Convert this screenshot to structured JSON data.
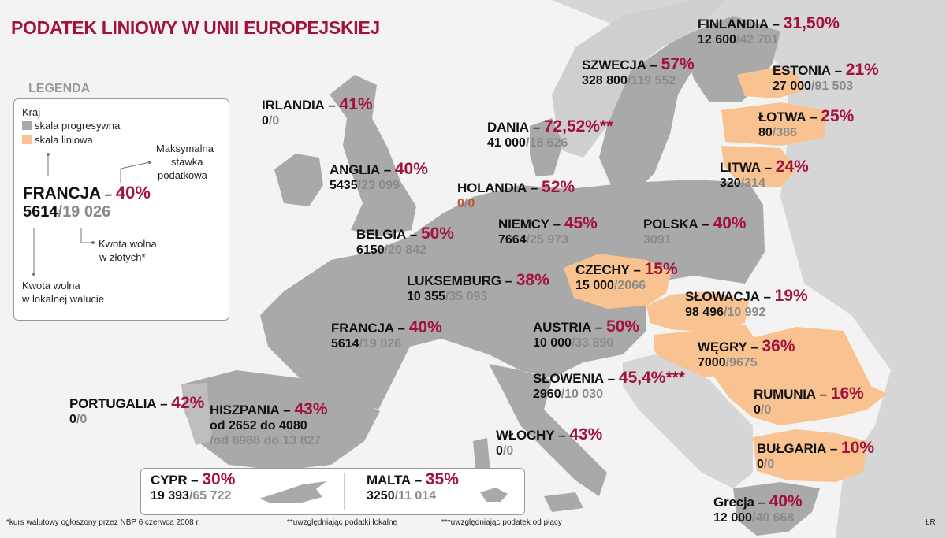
{
  "title": "PODATEK LINIOWY W UNII EUROPEJSKIEJ",
  "legend": {
    "heading": "LEGENDA",
    "kraj": "Kraj",
    "progressive_label": "skala progresywna",
    "linear_label": "skala liniowa",
    "max_rate_label_1": "Maksymalna",
    "max_rate_label_2": "stawka",
    "max_rate_label_3": "podatkowa",
    "example_name": "FRANCJA",
    "example_rate": "40%",
    "example_local": "5614",
    "example_pln": "19 026",
    "pln_note_1": "Kwota wolna",
    "pln_note_2": "w złotych*",
    "local_note_1": "Kwota wolna",
    "local_note_2": "w lokalnej walucie"
  },
  "colors": {
    "progressive": "#a9a9a9",
    "linear": "#f8c391",
    "rate": "#a3123b",
    "sea": "#f3f3f3",
    "non_eu": "#d6d6d6"
  },
  "countries": {
    "finlandia": {
      "name": "FINLANDIA",
      "rate": "31,50%",
      "local": "12 600",
      "pln": "42 701",
      "scale": "progresywna"
    },
    "szwecja": {
      "name": "SZWECJA",
      "rate": "57%",
      "local": "328 800",
      "pln": "119 552",
      "scale": "progresywna"
    },
    "estonia": {
      "name": "ESTONIA",
      "rate": "21%",
      "local": "27 000",
      "pln": "91 503",
      "scale": "liniowa"
    },
    "lotwa": {
      "name": "ŁOTWA",
      "rate": "25%",
      "local": "80",
      "pln": "386",
      "scale": "liniowa"
    },
    "litwa": {
      "name": "LITWA",
      "rate": "24%",
      "local": "320",
      "pln": "314",
      "scale": "liniowa"
    },
    "irlandia": {
      "name": "IRLANDIA",
      "rate": "41%",
      "local": "0",
      "pln": "0",
      "scale": "progresywna"
    },
    "dania": {
      "name": "DANIA",
      "rate": "72,52%**",
      "local": "41 000",
      "pln": "18 626",
      "scale": "progresywna"
    },
    "anglia": {
      "name": "ANGLIA",
      "rate": "40%",
      "local": "5435",
      "pln": "23 099",
      "scale": "progresywna"
    },
    "holandia": {
      "name": "HOLANDIA",
      "rate": "52%",
      "local": "0",
      "pln": "0",
      "scale": "progresywna"
    },
    "niemcy": {
      "name": "NIEMCY",
      "rate": "45%",
      "local": "7664",
      "pln": "25 973",
      "scale": "progresywna"
    },
    "polska": {
      "name": "POLSKA",
      "rate": "40%",
      "pln": "3091",
      "scale": "progresywna"
    },
    "belgia": {
      "name": "BELGIA",
      "rate": "50%",
      "local": "6150",
      "pln": "20 842",
      "scale": "progresywna"
    },
    "luksemburg": {
      "name": "LUKSEMBURG",
      "rate": "38%",
      "local": "10 355",
      "pln": "35 093",
      "scale": "progresywna"
    },
    "czechy": {
      "name": "CZECHY",
      "rate": "15%",
      "local": "15 000",
      "pln": "2066",
      "scale": "liniowa"
    },
    "slowacja": {
      "name": "SŁOWACJA",
      "rate": "19%",
      "local": "98 496",
      "pln": "10 992",
      "scale": "liniowa"
    },
    "francja": {
      "name": "FRANCJA",
      "rate": "40%",
      "local": "5614",
      "pln": "19 026",
      "scale": "progresywna"
    },
    "austria": {
      "name": "AUSTRIA",
      "rate": "50%",
      "local": "10 000",
      "pln": "33 890",
      "scale": "progresywna"
    },
    "wegry": {
      "name": "WĘGRY",
      "rate": "36%",
      "local": "7000",
      "pln": "9675",
      "scale": "liniowa"
    },
    "slowenia": {
      "name": "SŁOWENIA",
      "rate": "45,4%***",
      "local": "2960",
      "pln": "10 030",
      "scale": "progresywna"
    },
    "rumunia": {
      "name": "RUMUNIA",
      "rate": "16%",
      "local": "0",
      "pln": "0",
      "scale": "liniowa"
    },
    "portugalia": {
      "name": "PORTUGALIA",
      "rate": "42%",
      "local": "0",
      "pln": "0",
      "scale": "progresywna"
    },
    "hiszpania": {
      "name": "HISZPANIA",
      "rate": "43%",
      "local": "od 2652 do 4080",
      "pln": "/od 8988 do 13 827",
      "scale": "progresywna"
    },
    "wlochy": {
      "name": "WŁOCHY",
      "rate": "43%",
      "local": "0",
      "pln": "0",
      "scale": "progresywna"
    },
    "bulgaria": {
      "name": "BUŁGARIA",
      "rate": "10%",
      "local": "0",
      "pln": "0",
      "scale": "liniowa"
    },
    "grecja": {
      "name": "Grecja",
      "rate": "40%",
      "local": "12 000",
      "pln": "40 668",
      "scale": "progresywna"
    },
    "cypr": {
      "name": "CYPR",
      "rate": "30%",
      "local": "19 393",
      "pln": "65 722",
      "scale": "progresywna"
    },
    "malta": {
      "name": "MALTA",
      "rate": "35%",
      "local": "3250",
      "pln": "11 014",
      "scale": "progresywna"
    }
  },
  "footnotes": {
    "note1": "*kurs walutowy ogłoszony przez NBP 6 czerwca 2008 r.",
    "note2": "**uwzględniając podatki lokalne",
    "note3": "***uwzględniając podatek od płacy",
    "credit": "ŁR"
  }
}
